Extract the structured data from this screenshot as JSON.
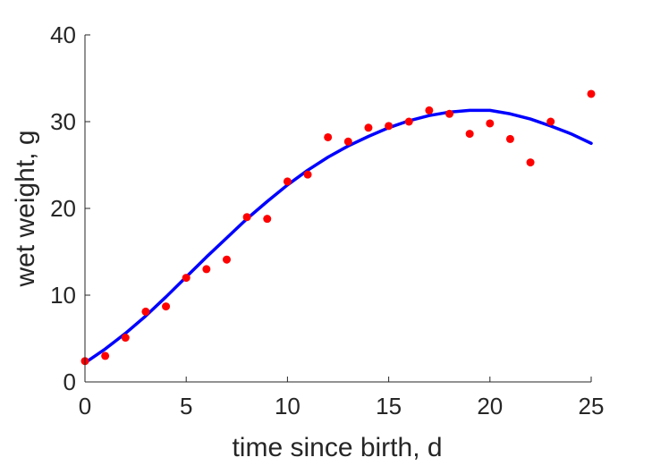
{
  "chart_data": {
    "type": "scatter",
    "xlabel": "time since birth, d",
    "ylabel": "wet weight, g",
    "xlim": [
      0,
      25
    ],
    "ylim": [
      0,
      40
    ],
    "xticks": [
      0,
      5,
      10,
      15,
      20,
      25
    ],
    "yticks": [
      0,
      10,
      20,
      30,
      40
    ],
    "grid": false,
    "series": [
      {
        "type": "scatter",
        "color": "#ff0000",
        "x": [
          0,
          1,
          2,
          3,
          4,
          5,
          6,
          7,
          8,
          9,
          10,
          11,
          12,
          13,
          14,
          15,
          16,
          17,
          18,
          19,
          20,
          21,
          22,
          23,
          25
        ],
        "y": [
          2.4,
          3.0,
          5.1,
          8.1,
          8.7,
          12.0,
          13.0,
          14.1,
          19.0,
          18.8,
          23.1,
          23.9,
          28.2,
          27.7,
          29.3,
          29.5,
          30.0,
          31.3,
          30.9,
          28.6,
          29.8,
          28.0,
          25.3,
          30.0,
          33.2
        ]
      },
      {
        "type": "line",
        "color": "#0000ff",
        "x": [
          0,
          1,
          2,
          3,
          4,
          5,
          6,
          7,
          8,
          9,
          10,
          11,
          12,
          13,
          14,
          15,
          16,
          17,
          18,
          19,
          20,
          21,
          22,
          23,
          24,
          25
        ],
        "y": [
          2.2,
          3.8,
          5.6,
          7.6,
          9.8,
          12.1,
          14.4,
          16.6,
          18.8,
          20.8,
          22.7,
          24.4,
          25.9,
          27.2,
          28.3,
          29.3,
          30.1,
          30.7,
          31.1,
          31.3,
          31.3,
          30.9,
          30.3,
          29.5,
          28.6,
          27.5
        ]
      }
    ]
  }
}
